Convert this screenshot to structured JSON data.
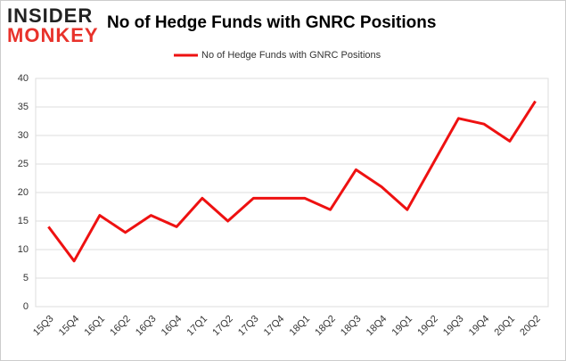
{
  "logo": {
    "top": "INSIDER",
    "bottom": "MONKEY"
  },
  "chart_data": {
    "type": "line",
    "title": "No of Hedge Funds with GNRC Positions",
    "categories": [
      "15Q3",
      "15Q4",
      "16Q1",
      "16Q2",
      "16Q3",
      "16Q4",
      "17Q1",
      "17Q2",
      "17Q3",
      "17Q4",
      "18Q1",
      "18Q2",
      "18Q3",
      "18Q4",
      "19Q1",
      "19Q2",
      "19Q3",
      "19Q4",
      "20Q1",
      "20Q2"
    ],
    "series": [
      {
        "name": "No of Hedge Funds with GNRC Positions",
        "color": "#ee1111",
        "values": [
          14,
          8,
          16,
          13,
          16,
          14,
          19,
          15,
          19,
          19,
          19,
          17,
          24,
          21,
          17,
          25,
          33,
          32,
          29,
          36
        ]
      }
    ],
    "ylim": [
      0,
      40
    ],
    "yticks": [
      0,
      5,
      10,
      15,
      20,
      25,
      30,
      35,
      40
    ],
    "grid": true,
    "legend": "top"
  }
}
